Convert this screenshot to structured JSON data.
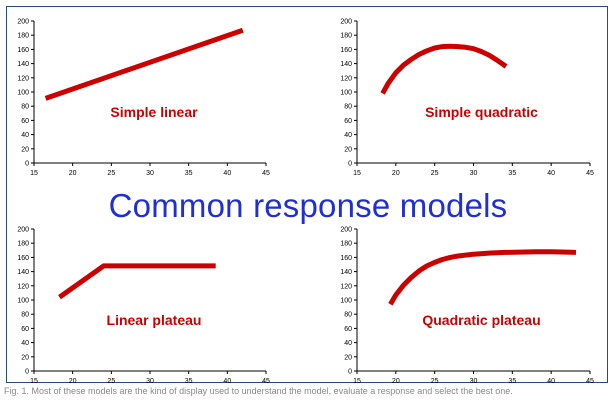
{
  "title": "Common response models",
  "caption": "Fig. 1. Most of these models are the kind of display used to understand the model, evaluate a response and select the best one.",
  "colors": {
    "line": "#cc0000",
    "label": "#cc0000",
    "title": "#1f2fd1",
    "frame": "#2a4a7a"
  },
  "chart_data": [
    {
      "type": "line",
      "label": "Simple linear",
      "xlim": [
        15,
        45
      ],
      "ylim": [
        0,
        200
      ],
      "xticks": [
        15,
        20,
        25,
        30,
        35,
        40,
        45
      ],
      "yticks": [
        0,
        20,
        40,
        60,
        80,
        100,
        120,
        140,
        160,
        180,
        200
      ],
      "series": [
        {
          "x": [
            16.5,
            42
          ],
          "y": [
            91,
            187
          ]
        }
      ]
    },
    {
      "type": "line",
      "label": "Simple quadratic",
      "xlim": [
        15,
        45
      ],
      "ylim": [
        0,
        200
      ],
      "xticks": [
        15,
        20,
        25,
        30,
        35,
        40,
        45
      ],
      "yticks": [
        0,
        20,
        40,
        60,
        80,
        100,
        120,
        140,
        160,
        180,
        200
      ],
      "series": [
        {
          "x": [
            18.3,
            19,
            20,
            21,
            22,
            23,
            24,
            25,
            26,
            27,
            28,
            29,
            30,
            31,
            32,
            33,
            34.2
          ],
          "y": [
            98,
            112,
            127,
            138,
            146,
            153,
            158,
            162,
            164,
            164.5,
            164,
            163,
            161,
            157,
            152,
            145,
            136
          ]
        }
      ]
    },
    {
      "type": "line",
      "label": "Linear plateau",
      "xlim": [
        15,
        45
      ],
      "ylim": [
        0,
        200
      ],
      "xticks": [
        15,
        20,
        25,
        30,
        35,
        40,
        45
      ],
      "yticks": [
        0,
        20,
        40,
        60,
        80,
        100,
        120,
        140,
        160,
        180,
        200
      ],
      "series": [
        {
          "x": [
            18.3,
            24,
            38.5
          ],
          "y": [
            104,
            148,
            148
          ]
        }
      ]
    },
    {
      "type": "line",
      "label": "Quadratic plateau",
      "xlim": [
        15,
        45
      ],
      "ylim": [
        0,
        200
      ],
      "xticks": [
        15,
        20,
        25,
        30,
        35,
        40,
        45
      ],
      "yticks": [
        0,
        20,
        40,
        60,
        80,
        100,
        120,
        140,
        160,
        180,
        200
      ],
      "series": [
        {
          "x": [
            19.3,
            20,
            21,
            22,
            23,
            24,
            25,
            26,
            27,
            28,
            30,
            32,
            34,
            36,
            38,
            40,
            42,
            43.2
          ],
          "y": [
            94,
            107,
            121,
            132,
            141,
            148,
            153,
            157,
            160,
            162,
            164.5,
            166,
            167,
            167.5,
            168,
            168,
            167.5,
            167
          ]
        }
      ]
    }
  ]
}
